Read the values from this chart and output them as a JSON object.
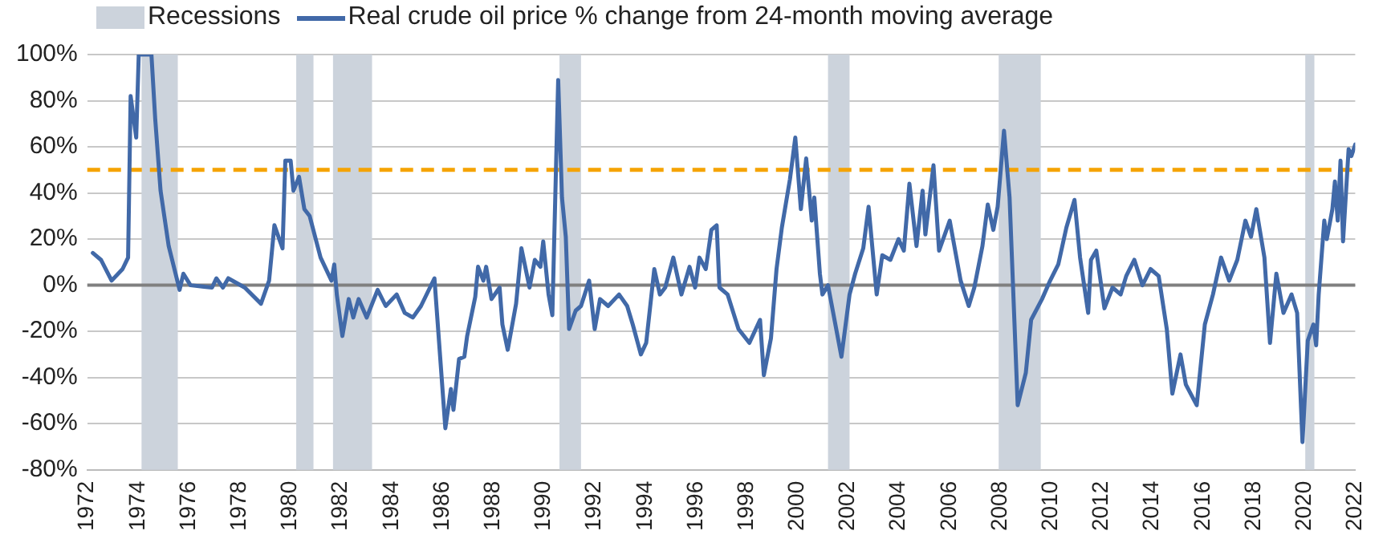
{
  "chart_data": {
    "type": "line",
    "x": [
      1972.22,
      1972.54,
      1972.96,
      1973.39,
      1973.61,
      1973.71,
      1973.93,
      1974.03,
      1974.53,
      1974.68,
      1974.89,
      1975.21,
      1975.64,
      1975.79,
      1976.07,
      1976.92,
      1977.09,
      1977.35,
      1977.56,
      1978.21,
      1978.85,
      1979.17,
      1979.38,
      1979.7,
      1979.81,
      1980.02,
      1980.13,
      1980.35,
      1980.56,
      1980.77,
      1981.2,
      1981.63,
      1981.74,
      1981.84,
      1982.06,
      1982.31,
      1982.49,
      1982.7,
      1983.02,
      1983.45,
      1983.77,
      1984.2,
      1984.52,
      1984.84,
      1985.16,
      1985.69,
      1986.12,
      1986.34,
      1986.44,
      1986.66,
      1986.87,
      1986.98,
      1987.3,
      1987.41,
      1987.62,
      1987.73,
      1987.94,
      1988.26,
      1988.37,
      1988.58,
      1988.91,
      1989.12,
      1989.44,
      1989.65,
      1989.87,
      1989.98,
      1990.19,
      1990.34,
      1990.57,
      1990.72,
      1990.87,
      1991.0,
      1991.26,
      1991.47,
      1991.79,
      1992.01,
      1992.22,
      1992.54,
      1992.97,
      1993.29,
      1993.51,
      1993.83,
      1994.04,
      1994.36,
      1994.58,
      1994.79,
      1995.11,
      1995.43,
      1995.75,
      1995.97,
      1996.14,
      1996.39,
      1996.61,
      1996.82,
      1996.93,
      1997.25,
      1997.68,
      1998.11,
      1998.53,
      1998.68,
      1998.96,
      1999.18,
      1999.39,
      1999.71,
      1999.92,
      2000.14,
      2000.35,
      2000.57,
      2000.67,
      2000.89,
      2000.99,
      2001.21,
      2001.74,
      2002.06,
      2002.28,
      2002.6,
      2002.81,
      2003.13,
      2003.35,
      2003.67,
      2003.99,
      2004.2,
      2004.42,
      2004.7,
      2004.94,
      2005.05,
      2005.37,
      2005.59,
      2006.01,
      2006.44,
      2006.76,
      2006.98,
      2007.3,
      2007.51,
      2007.73,
      2007.9,
      2008.15,
      2008.37,
      2008.69,
      2009.01,
      2009.22,
      2009.65,
      2009.97,
      2010.29,
      2010.61,
      2010.93,
      2011.15,
      2011.47,
      2011.58,
      2011.79,
      2012.11,
      2012.43,
      2012.75,
      2012.97,
      2013.29,
      2013.61,
      2013.93,
      2014.25,
      2014.57,
      2014.79,
      2015.11,
      2015.32,
      2015.75,
      2016.07,
      2016.39,
      2016.71,
      2017.03,
      2017.35,
      2017.67,
      2017.89,
      2018.1,
      2018.42,
      2018.64,
      2018.89,
      2019.17,
      2019.49,
      2019.71,
      2019.92,
      2020.13,
      2020.35,
      2020.46,
      2020.56,
      2020.78,
      2020.88,
      2021.1,
      2021.2,
      2021.31,
      2021.42,
      2021.52,
      2021.74,
      2021.85,
      2022.0
    ],
    "series": [
      {
        "name": "Real crude oil price % change from 24-month moving average",
        "color": "#4169a8",
        "values": [
          14,
          11,
          2,
          7,
          12,
          82,
          64,
          100,
          100,
          72,
          41,
          17,
          -2,
          5,
          0,
          -1,
          3,
          -1,
          3,
          -1,
          -8,
          2,
          26,
          16,
          54,
          54,
          41,
          47,
          33,
          30,
          12,
          2,
          9,
          -4,
          -22,
          -6,
          -14,
          -6,
          -14,
          -2,
          -9,
          -4,
          -12,
          -14,
          -9,
          3,
          -62,
          -45,
          -54,
          -32,
          -31,
          -22,
          -5,
          8,
          2,
          8,
          -6,
          -1,
          -17,
          -28,
          -8,
          16,
          -1,
          11,
          8,
          19,
          -4,
          -13,
          89,
          38,
          21,
          -19,
          -11,
          -9,
          2,
          -19,
          -6,
          -9,
          -4,
          -9,
          -17,
          -30,
          -25,
          7,
          -4,
          -1,
          12,
          -4,
          8,
          -1,
          12,
          7,
          24,
          26,
          -1,
          -4,
          -19,
          -25,
          -15,
          -39,
          -23,
          7,
          25,
          46,
          64,
          33,
          55,
          28,
          38,
          5,
          -4,
          0,
          -31,
          -4,
          5,
          16,
          34,
          -4,
          13,
          11,
          20,
          15,
          44,
          17,
          41,
          22,
          52,
          15,
          28,
          2,
          -9,
          -1,
          17,
          35,
          24,
          34,
          67,
          38,
          -52,
          -38,
          -15,
          -6,
          2,
          9,
          25,
          37,
          12,
          -12,
          11,
          15,
          -10,
          -1,
          -4,
          4,
          11,
          0,
          7,
          4,
          -19,
          -47,
          -30,
          -43,
          -52,
          -17,
          -4,
          12,
          2,
          11,
          28,
          21,
          33,
          12,
          -25,
          5,
          -12,
          -4,
          -12,
          -68,
          -24,
          -17,
          -26,
          -4,
          28,
          20,
          33,
          45,
          28,
          54,
          19,
          59,
          56,
          61
        ]
      }
    ],
    "xlim": [
      1972,
      2022
    ],
    "xticks": [
      1972,
      1974,
      1976,
      1978,
      1980,
      1982,
      1984,
      1986,
      1988,
      1990,
      1992,
      1994,
      1996,
      1998,
      2000,
      2002,
      2004,
      2006,
      2008,
      2010,
      2012,
      2014,
      2016,
      2018,
      2020,
      2022
    ],
    "ylim": [
      -80,
      100
    ],
    "yticks": [
      {
        "value": -80,
        "label": "-80%"
      },
      {
        "value": -60,
        "label": "-60%"
      },
      {
        "value": -40,
        "label": "-40%"
      },
      {
        "value": -20,
        "label": "-20%"
      },
      {
        "value": 0,
        "label": "0%"
      },
      {
        "value": 20,
        "label": "20%"
      },
      {
        "value": 40,
        "label": "40%"
      },
      {
        "value": 60,
        "label": "60%"
      },
      {
        "value": 80,
        "label": "80%"
      },
      {
        "value": 100,
        "label": "100%"
      }
    ],
    "grid": "y",
    "legend": "top",
    "marker": "none",
    "line_style": "solid",
    "ref_lines": [
      {
        "axis": "y",
        "value": 0,
        "color": "#808080",
        "line_style": "solid"
      },
      {
        "axis": "y",
        "value": 50,
        "color": "#f5a300",
        "line_style": "dashed"
      }
    ],
    "bands": [
      {
        "axis": "x",
        "from": 1974.14,
        "to": 1975.57,
        "label": "Recessions",
        "color": "#ccd3dc"
      },
      {
        "axis": "x",
        "from": 1980.24,
        "to": 1980.92,
        "color": "#ccd3dc"
      },
      {
        "axis": "x",
        "from": 1981.69,
        "to": 1983.23,
        "color": "#ccd3dc"
      },
      {
        "axis": "x",
        "from": 1990.62,
        "to": 1991.47,
        "color": "#ccd3dc"
      },
      {
        "axis": "x",
        "from": 2001.21,
        "to": 2002.06,
        "color": "#ccd3dc"
      },
      {
        "axis": "x",
        "from": 2007.94,
        "to": 2009.6,
        "color": "#ccd3dc"
      },
      {
        "axis": "x",
        "from": 2020.03,
        "to": 2020.39,
        "color": "#ccd3dc"
      }
    ]
  }
}
